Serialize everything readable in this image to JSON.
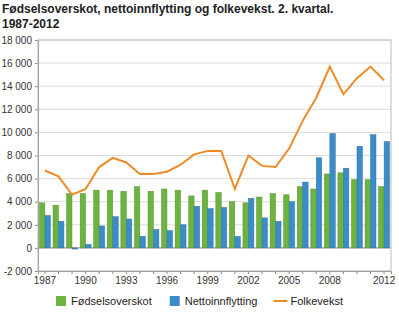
{
  "chart_data": {
    "type": "bar",
    "title": "Fødselsoverskot, nettoinnflytting og folkevekst. 2. kvartal. 1987-2012",
    "categories": [
      "1987",
      null,
      null,
      "1990",
      null,
      null,
      "1993",
      null,
      null,
      "1996",
      null,
      null,
      "1999",
      null,
      null,
      "2002",
      null,
      null,
      "2005",
      null,
      null,
      "2008",
      null,
      null,
      null,
      "2012"
    ],
    "series": [
      {
        "name": "Fødselsoverskot",
        "type": "bar",
        "color": "#6db33f",
        "values": [
          3900,
          3700,
          4700,
          4700,
          5000,
          5000,
          4900,
          5300,
          4900,
          5100,
          5000,
          4500,
          5000,
          4800,
          4000,
          3900,
          4400,
          4700,
          4600,
          5300,
          5100,
          6400,
          6500,
          5900,
          5900,
          5300
        ]
      },
      {
        "name": "Nettoinnflytting",
        "type": "bar",
        "color": "#3a8dc8",
        "values": [
          2800,
          2300,
          -100,
          300,
          1900,
          2700,
          2500,
          1000,
          1600,
          1500,
          2000,
          3600,
          3400,
          3500,
          1000,
          4300,
          2600,
          2300,
          4000,
          5700,
          7800,
          9900,
          6900,
          8800,
          9800,
          9200
        ]
      },
      {
        "name": "Folkevekst",
        "type": "line",
        "color": "#f08a24",
        "values": [
          6700,
          6200,
          4600,
          5100,
          7000,
          7800,
          7400,
          6400,
          6400,
          6600,
          7200,
          8100,
          8400,
          8400,
          5100,
          8000,
          7100,
          7000,
          8600,
          11000,
          13000,
          15700,
          13300,
          14700,
          15700,
          14500
        ]
      }
    ],
    "ylim": [
      -2000,
      18000
    ],
    "yticks": [
      {
        "value": -2000,
        "label": "-2 000"
      },
      0,
      {
        "value": 2000,
        "label": "2 000"
      },
      {
        "value": 4000,
        "label": "4 000"
      },
      {
        "value": 6000,
        "label": "6 000"
      },
      {
        "value": 8000,
        "label": "8 000"
      },
      {
        "value": 10000,
        "label": "10 000"
      },
      {
        "value": 12000,
        "label": "12 000"
      },
      {
        "value": 14000,
        "label": "14 000"
      },
      {
        "value": 16000,
        "label": "16 000"
      },
      {
        "value": 18000,
        "label": "18 000"
      }
    ],
    "grid": true,
    "legend": "bottom"
  }
}
